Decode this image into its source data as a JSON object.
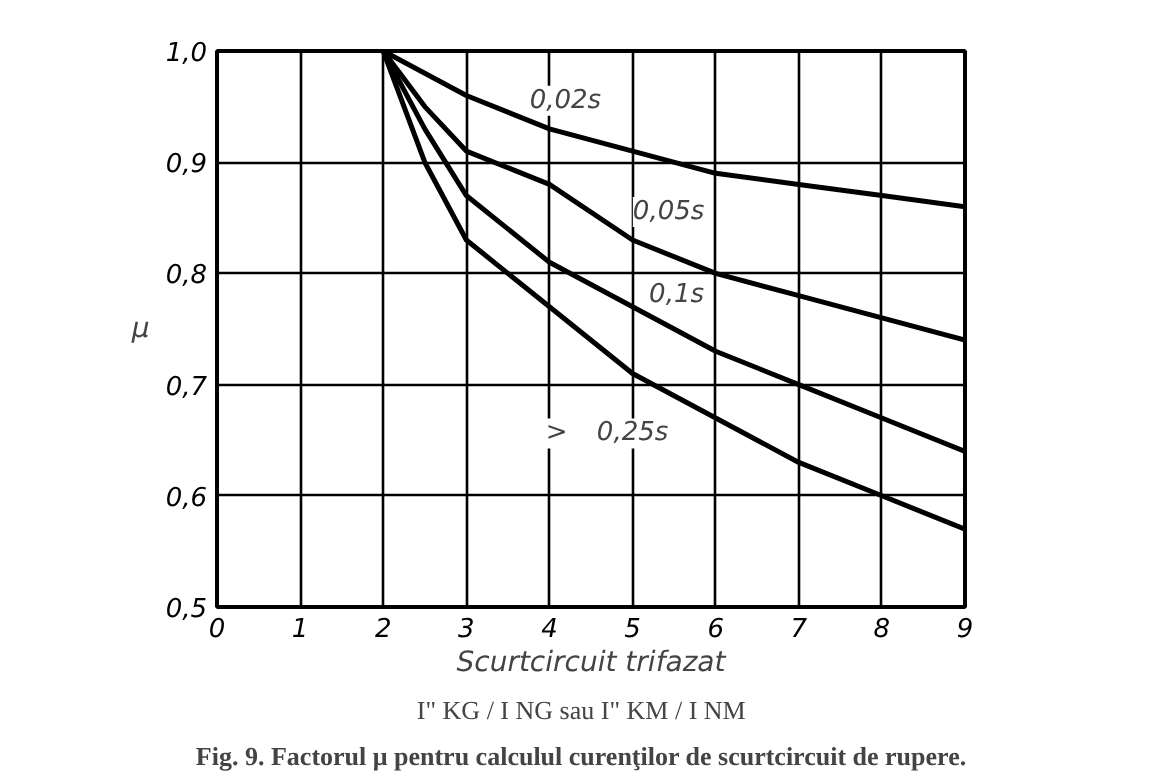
{
  "chart_data": {
    "type": "line",
    "xlabel": "Scurtcircuit trifazat",
    "ylabel": "μ",
    "xlim": [
      0,
      9
    ],
    "ylim": [
      0.5,
      1.0
    ],
    "xticks": [
      0,
      1,
      2,
      3,
      4,
      5,
      6,
      7,
      8,
      9
    ],
    "yticks": [
      {
        "value": 0.5,
        "label": "0,5"
      },
      {
        "value": 0.6,
        "label": "0,6"
      },
      {
        "value": 0.7,
        "label": "0,7"
      },
      {
        "value": 0.8,
        "label": "0,8"
      },
      {
        "value": 0.9,
        "label": "0,9"
      },
      {
        "value": 1.0,
        "label": "1,0"
      }
    ],
    "grid": true,
    "legend": false,
    "marker": "none",
    "line_style": "solid",
    "x": [
      2,
      2.5,
      3,
      4,
      5,
      6,
      7,
      8,
      9
    ],
    "series": [
      {
        "name": "0,02s",
        "color": "#000000",
        "values": [
          1.0,
          0.98,
          0.96,
          0.93,
          0.91,
          0.89,
          0.88,
          0.87,
          0.86
        ]
      },
      {
        "name": "0,05s",
        "color": "#000000",
        "values": [
          1.0,
          0.95,
          0.91,
          0.88,
          0.83,
          0.8,
          0.78,
          0.76,
          0.74
        ]
      },
      {
        "name": "0,1s",
        "color": "#000000",
        "values": [
          1.0,
          0.93,
          0.87,
          0.81,
          0.77,
          0.73,
          0.7,
          0.67,
          0.64
        ]
      },
      {
        "name": "0,25s",
        "color": "#000000",
        "values": [
          1.0,
          0.9,
          0.83,
          0.77,
          0.71,
          0.67,
          0.63,
          0.6,
          0.57
        ]
      }
    ],
    "annotations": [
      ">",
      "I\" KG / I NG   sau  I\" KM / I NM",
      "Fig. 9.    Factorul μ pentru calculul curenţilor de scurtcircuit de rupere."
    ]
  }
}
